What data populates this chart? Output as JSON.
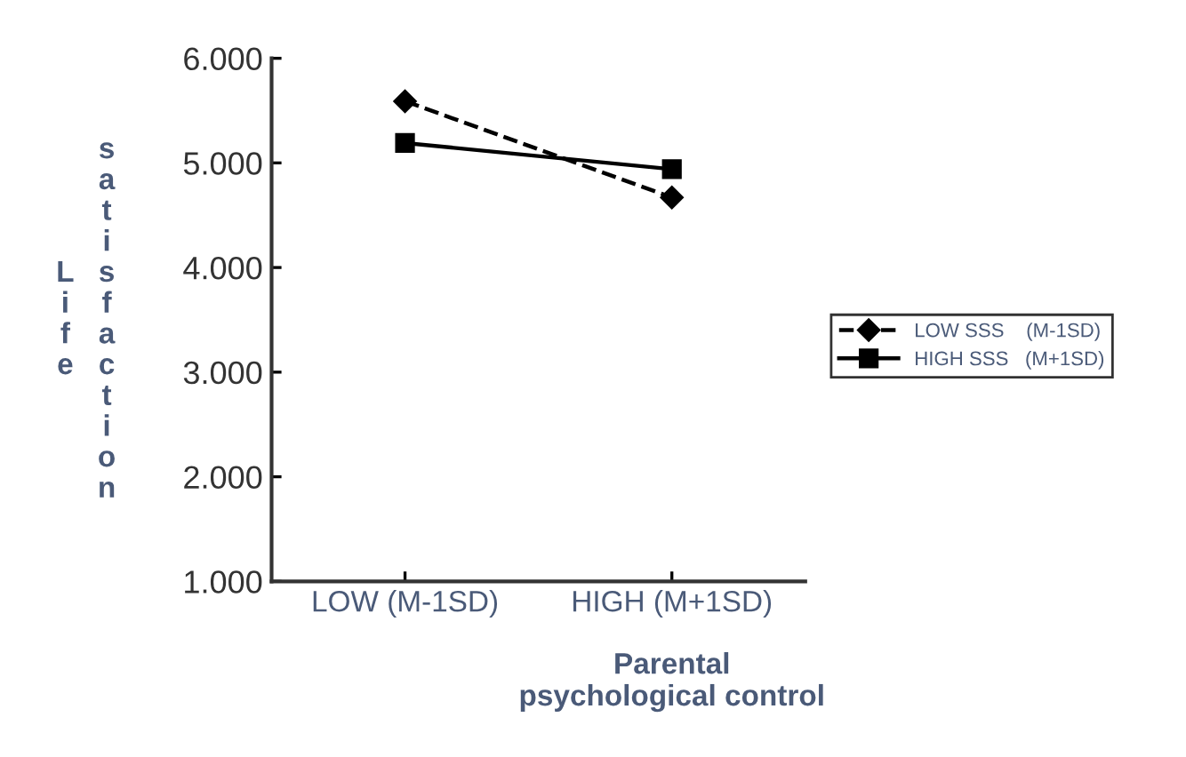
{
  "chart_data": {
    "type": "line",
    "xlabel": "Parental\npsychological control",
    "ylabel": "Life satisfaction",
    "categories": [
      "LOW (M-1SD)",
      "HIGH (M+1SD)"
    ],
    "series": [
      {
        "name": "LOW SSS    (M-1SD)",
        "color": "#000000",
        "values": [
          5.59,
          4.67
        ],
        "marker": "diamond",
        "line_style": "dashed"
      },
      {
        "name": "HIGH SSS   (M+1SD)",
        "color": "#000000",
        "values": [
          5.19,
          4.94
        ],
        "marker": "square",
        "line_style": "solid"
      }
    ],
    "ylim": [
      1,
      6
    ],
    "yticks": [
      {
        "value": 1,
        "label": "1.000"
      },
      {
        "value": 2,
        "label": "2.000"
      },
      {
        "value": 3,
        "label": "3.000"
      },
      {
        "value": 4,
        "label": "4.000"
      },
      {
        "value": 5,
        "label": "5.000"
      },
      {
        "value": 6,
        "label": "6.000"
      }
    ],
    "grid": false,
    "legend": "right"
  }
}
